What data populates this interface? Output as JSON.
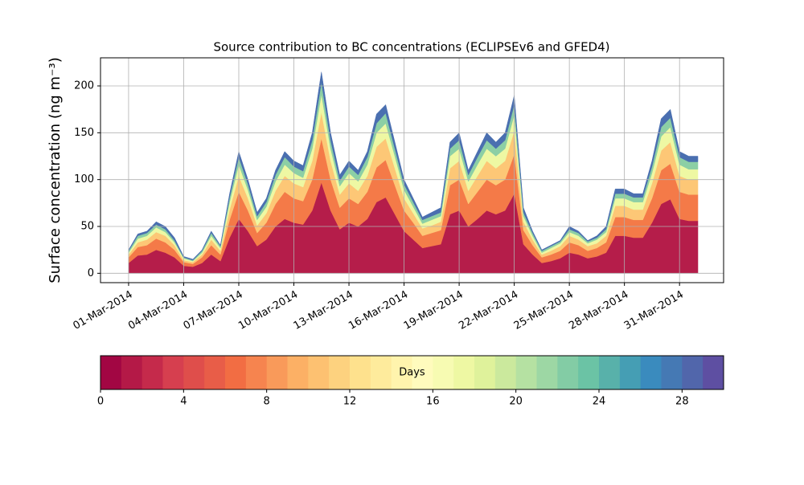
{
  "chart_data": {
    "type": "stacked_area",
    "title": "Source contribution to BC concentrations (ECLIPSEv6 and GFED4)",
    "y_label": "Surface concentration (ng m⁻³)",
    "x": [
      0,
      0.5,
      1,
      1.5,
      2,
      2.5,
      3,
      3.5,
      4,
      4.5,
      5,
      5.5,
      6,
      6.5,
      7,
      7.5,
      8,
      8.5,
      9,
      9.5,
      10,
      10.5,
      11,
      11.5,
      12,
      12.5,
      13,
      13.5,
      14,
      14.5,
      15,
      15.5,
      16,
      16.5,
      17,
      17.5,
      18,
      18.5,
      19,
      19.5,
      20,
      20.5,
      21,
      21.5,
      22,
      22.5,
      23,
      23.5,
      24,
      24.5,
      25,
      25.5,
      26,
      26.5,
      27,
      27.5,
      28,
      28.5,
      29,
      29.5,
      30,
      30.5,
      31
    ],
    "series": [
      {
        "color": "#b51d4a",
        "values": [
          11,
          19,
          20,
          25,
          22,
          17,
          8,
          7,
          11,
          20,
          13,
          38,
          58,
          45,
          29,
          36,
          50,
          58,
          54,
          52,
          67,
          97,
          67,
          47,
          54,
          50,
          58,
          76,
          81,
          63,
          45,
          36,
          27,
          29,
          31,
          63,
          67,
          50,
          58,
          67,
          63,
          67,
          85,
          31,
          20,
          11,
          13,
          16,
          22,
          20,
          16,
          18,
          22,
          40,
          40,
          38,
          38,
          54,
          74,
          79,
          58,
          56,
          56
        ]
      },
      {
        "color": "#f47a48",
        "values": [
          6,
          9,
          10,
          12,
          11,
          8,
          4,
          3,
          6,
          10,
          7,
          19,
          29,
          22,
          14,
          18,
          24,
          29,
          26,
          25,
          33,
          47,
          33,
          23,
          26,
          24,
          29,
          37,
          40,
          31,
          22,
          18,
          13,
          14,
          15,
          31,
          33,
          24,
          29,
          33,
          31,
          33,
          42,
          15,
          10,
          6,
          7,
          8,
          11,
          10,
          8,
          9,
          11,
          20,
          20,
          19,
          19,
          26,
          36,
          38,
          29,
          28,
          28
        ]
      },
      {
        "color": "#fdc776",
        "values": [
          3,
          5,
          6,
          7,
          7,
          5,
          2,
          2,
          3,
          6,
          4,
          11,
          17,
          13,
          8,
          10,
          14,
          17,
          16,
          15,
          20,
          28,
          20,
          14,
          16,
          14,
          17,
          22,
          23,
          18,
          13,
          10,
          8,
          8,
          9,
          18,
          20,
          14,
          17,
          20,
          18,
          20,
          25,
          9,
          6,
          3,
          4,
          5,
          7,
          6,
          5,
          5,
          7,
          12,
          12,
          11,
          11,
          16,
          21,
          23,
          17,
          16,
          16
        ]
      },
      {
        "color": "#eef8a3",
        "values": [
          2,
          4,
          4,
          5,
          4,
          3,
          2,
          1,
          2,
          4,
          3,
          8,
          12,
          9,
          6,
          7,
          10,
          12,
          11,
          10,
          13,
          19,
          13,
          9,
          11,
          10,
          12,
          15,
          16,
          13,
          9,
          7,
          5,
          6,
          6,
          13,
          13,
          10,
          12,
          13,
          13,
          13,
          17,
          6,
          4,
          2,
          3,
          3,
          4,
          4,
          3,
          4,
          4,
          8,
          8,
          8,
          8,
          11,
          15,
          16,
          12,
          11,
          11
        ]
      },
      {
        "color": "#8ccfa5",
        "values": [
          2,
          3,
          3,
          3,
          3,
          2,
          1,
          1,
          2,
          3,
          2,
          5,
          8,
          6,
          4,
          5,
          7,
          8,
          7,
          7,
          9,
          13,
          9,
          6,
          7,
          7,
          8,
          10,
          11,
          8,
          6,
          5,
          4,
          4,
          4,
          8,
          9,
          7,
          8,
          9,
          8,
          9,
          11,
          4,
          3,
          2,
          2,
          2,
          3,
          3,
          2,
          2,
          3,
          5,
          5,
          5,
          5,
          7,
          10,
          10,
          8,
          8,
          8
        ]
      },
      {
        "color": "#4a6fb0",
        "values": [
          1,
          2,
          2,
          3,
          3,
          3,
          1,
          1,
          1,
          2,
          1,
          4,
          6,
          5,
          4,
          4,
          5,
          6,
          6,
          6,
          8,
          11,
          8,
          6,
          6,
          5,
          6,
          10,
          9,
          7,
          5,
          4,
          3,
          4,
          5,
          7,
          8,
          5,
          6,
          8,
          7,
          8,
          10,
          5,
          2,
          1,
          1,
          1,
          3,
          2,
          1,
          2,
          3,
          5,
          5,
          4,
          4,
          6,
          9,
          9,
          6,
          6,
          6
        ]
      }
    ],
    "xlim": [
      -1.53,
      32.4
    ],
    "xticks": [
      {
        "value": 0,
        "label": "01-Mar-2014"
      },
      {
        "value": 3,
        "label": "04-Mar-2014"
      },
      {
        "value": 6,
        "label": "07-Mar-2014"
      },
      {
        "value": 9,
        "label": "10-Mar-2014"
      },
      {
        "value": 12,
        "label": "13-Mar-2014"
      },
      {
        "value": 15,
        "label": "16-Mar-2014"
      },
      {
        "value": 18,
        "label": "19-Mar-2014"
      },
      {
        "value": 21,
        "label": "22-Mar-2014"
      },
      {
        "value": 24,
        "label": "25-Mar-2014"
      },
      {
        "value": 27,
        "label": "28-Mar-2014"
      },
      {
        "value": 30,
        "label": "31-Mar-2014"
      }
    ],
    "ylim": [
      -10,
      230
    ],
    "yticks": [
      0,
      50,
      100,
      150,
      200
    ],
    "grid": true,
    "colorbar": {
      "label": "Days",
      "lim": [
        0,
        30
      ],
      "ticks": [
        0,
        4,
        8,
        12,
        16,
        20,
        24,
        28
      ],
      "colors": [
        "#a20643",
        "#b41947",
        "#c52a4b",
        "#d63f4f",
        "#df4e4b",
        "#e85d48",
        "#f26d43",
        "#f6844f",
        "#f99a5a",
        "#fcb065",
        "#fdc171",
        "#fdd27f",
        "#fee18d",
        "#feeb9c",
        "#fff4ad",
        "#fffbbd",
        "#f7fbb2",
        "#eef8a3",
        "#dff29b",
        "#cbe99d",
        "#b5e1a2",
        "#9dd7a4",
        "#83cca5",
        "#6bc3a5",
        "#58b1aa",
        "#459eb4",
        "#3a8bbe",
        "#4579b4",
        "#5166ab",
        "#5e4fa2"
      ]
    }
  }
}
